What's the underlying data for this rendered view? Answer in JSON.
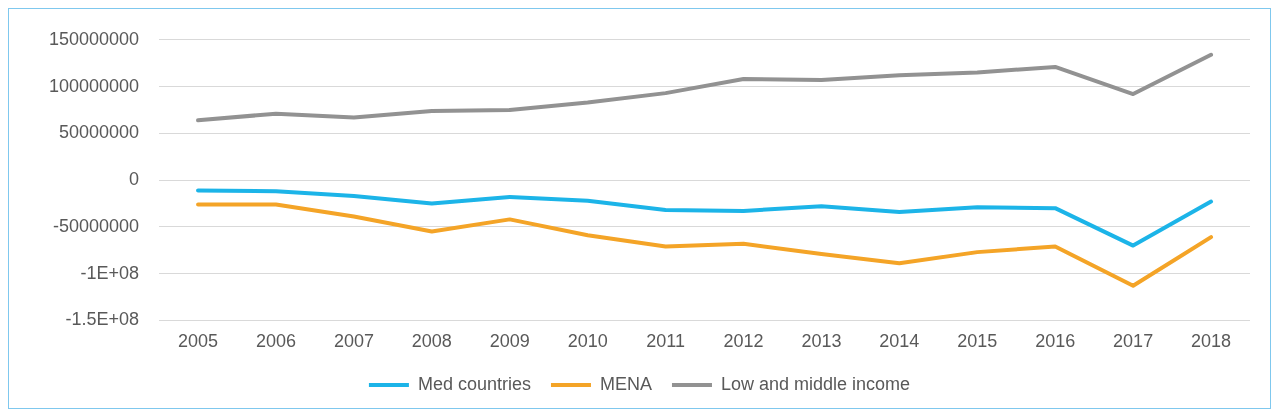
{
  "chart_data": {
    "type": "line",
    "categories": [
      "2005",
      "2006",
      "2007",
      "2008",
      "2009",
      "2010",
      "2011",
      "2012",
      "2013",
      "2014",
      "2015",
      "2016",
      "2017",
      "2018"
    ],
    "series": [
      {
        "name": "Med countries",
        "color": "#1cb4e8",
        "values": [
          -11000000,
          -12000000,
          -17000000,
          -25000000,
          -18000000,
          -22000000,
          -32000000,
          -33000000,
          -28000000,
          -34000000,
          -29000000,
          -30000000,
          -70000000,
          -23000000
        ]
      },
      {
        "name": "MENA",
        "color": "#f4a427",
        "values": [
          -26000000,
          -26000000,
          -39000000,
          -55000000,
          -42000000,
          -59000000,
          -71000000,
          -68000000,
          -79000000,
          -89000000,
          -77000000,
          -71000000,
          -113000000,
          -61000000
        ]
      },
      {
        "name": "Low and middle income",
        "color": "#929292",
        "values": [
          64000000,
          71000000,
          67000000,
          74000000,
          75000000,
          83000000,
          93000000,
          108000000,
          107000000,
          112000000,
          115000000,
          121000000,
          92000000,
          134000000
        ]
      }
    ],
    "ylim": [
      -150000000,
      150000000
    ],
    "yticks": [
      {
        "value": -150000000,
        "label": "-1.5E+08"
      },
      {
        "value": -100000000,
        "label": "-1E+08"
      },
      -50000000,
      0,
      50000000,
      100000000,
      150000000
    ],
    "grid": "y",
    "legend": "bottom",
    "marker": "none",
    "line_style": "solid"
  }
}
